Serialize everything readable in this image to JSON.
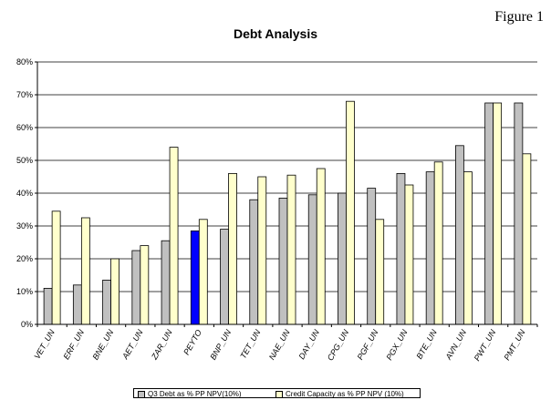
{
  "figure_label": "Figure 1",
  "chart_data": {
    "type": "bar",
    "title": "Debt Analysis",
    "xlabel": "",
    "ylabel": "",
    "ylim": [
      0,
      80
    ],
    "y_ticks": [
      "0%",
      "10%",
      "20%",
      "30%",
      "40%",
      "50%",
      "60%",
      "70%",
      "80%"
    ],
    "categories": [
      "VET_UN",
      "ERF_UN",
      "BNE_UN",
      "AET_UN",
      "ZAR_UN",
      "PEYTO",
      "BNP_UN",
      "TET_UN",
      "NAE_UN",
      "DAY_UN",
      "CPG_UN",
      "PGF_UN",
      "PGX_UN",
      "BTE_UN",
      "AVN_UN",
      "PWT_UN",
      "PMT_UN"
    ],
    "series": [
      {
        "name": "Q3 Debt as % PP NPV(10%)",
        "color": "#c0c0c0",
        "values": [
          11,
          12,
          13.5,
          22.5,
          25.5,
          28.5,
          29,
          38,
          38.5,
          39.5,
          40,
          41.5,
          46,
          46.5,
          54.5,
          67.5,
          67.5
        ]
      },
      {
        "name": "Credit Capacity as % PP NPV (10%)",
        "color": "#ffffcc",
        "values": [
          34.5,
          32.5,
          20,
          24,
          54,
          32,
          46,
          45,
          45.5,
          47.5,
          68,
          32,
          42.5,
          49.5,
          46.5,
          67.5,
          52
        ]
      }
    ],
    "highlight": {
      "category": "PEYTO",
      "series": 0,
      "color": "#0000ff"
    },
    "grid": true,
    "legend_position": "bottom"
  }
}
